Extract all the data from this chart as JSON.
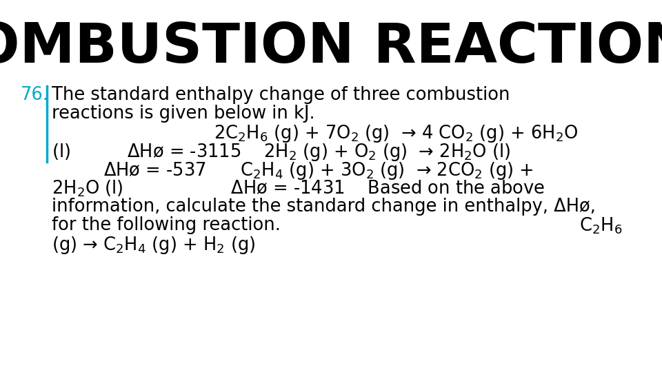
{
  "title": "COMBUSTION REACTIONS",
  "title_fontsize": 58,
  "title_color": "#000000",
  "number_color": "#00AACC",
  "line_color": "#00AACC",
  "body_fontsize": 18.5,
  "body_color": "#000000",
  "background_color": "#ffffff",
  "arrow": "→",
  "delta": "Δ",
  "phi": "ø"
}
